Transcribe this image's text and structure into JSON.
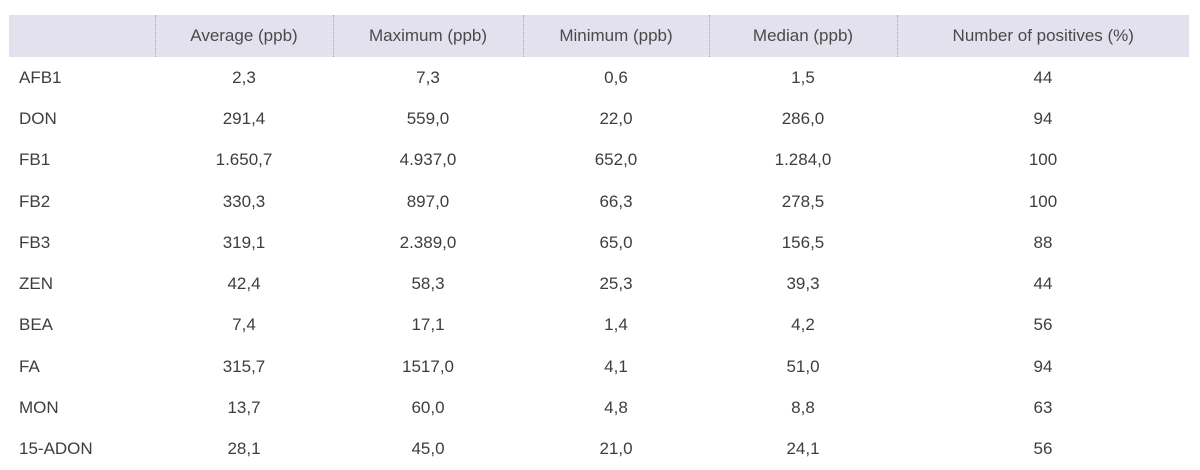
{
  "chart_data": {
    "type": "table",
    "columns": [
      "",
      "Average (ppb)",
      "Maximum (ppb)",
      "Minimum (ppb)",
      "Median (ppb)",
      "Number of positives (%)"
    ],
    "rows": [
      [
        "AFB1",
        "2,3",
        "7,3",
        "0,6",
        "1,5",
        "44"
      ],
      [
        "DON",
        "291,4",
        "559,0",
        "22,0",
        "286,0",
        "94"
      ],
      [
        "FB1",
        "1.650,7",
        "4.937,0",
        "652,0",
        "1.284,0",
        "100"
      ],
      [
        "FB2",
        "330,3",
        "897,0",
        "66,3",
        "278,5",
        "100"
      ],
      [
        "FB3",
        "319,1",
        "2.389,0",
        "65,0",
        "156,5",
        "88"
      ],
      [
        "ZEN",
        "42,4",
        "58,3",
        "25,3",
        "39,3",
        "44"
      ],
      [
        "BEA",
        "7,4",
        "17,1",
        "1,4",
        "4,2",
        "56"
      ],
      [
        "FA",
        "315,7",
        "1517,0",
        "4,1",
        "51,0",
        "94"
      ],
      [
        "MON",
        "13,7",
        "60,0",
        "4,8",
        "8,8",
        "63"
      ],
      [
        "15-ADON",
        "28,1",
        "45,0",
        "21,0",
        "24,1",
        "56"
      ]
    ],
    "header_color": "#e3e1ee"
  }
}
